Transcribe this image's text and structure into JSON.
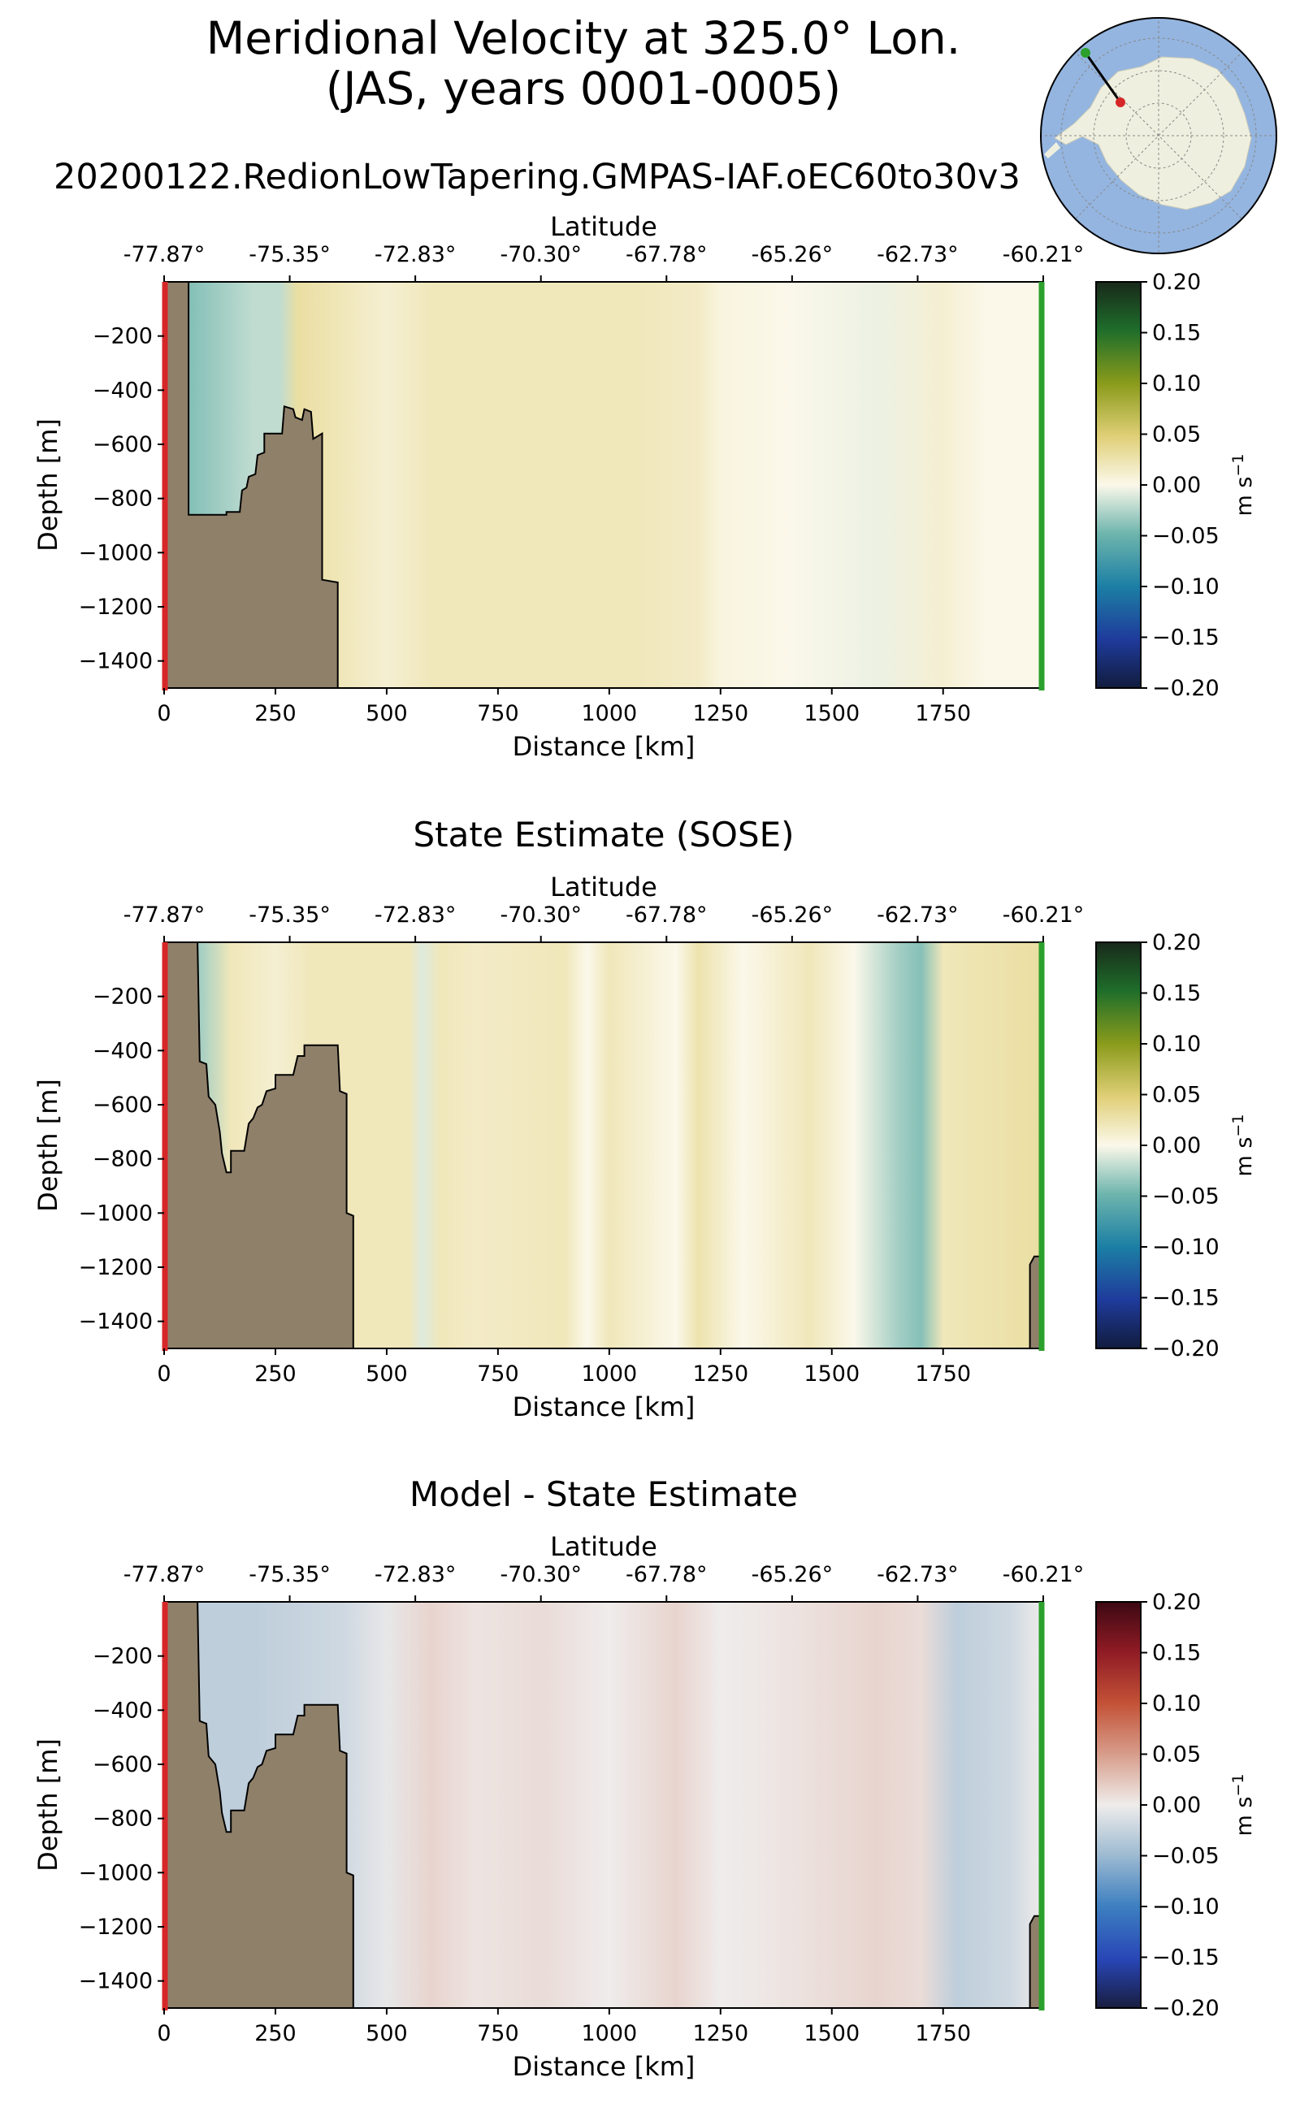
{
  "header": {
    "title_line1": "Meridional Velocity at 325.0° Lon.",
    "title_line2": "(JAS, years 0001-0005)",
    "run_name": "20200122.RedionLowTapering.GMPAS-IAF.oEC60to30v3"
  },
  "inset_map": {
    "description_icon": "antarctica-polar-map-icon",
    "start_color": "#2ca02c",
    "end_color": "#d62728"
  },
  "colors": {
    "land": "#8f806a",
    "left_boundary": "#d62728",
    "right_boundary": "#2ca02c"
  },
  "chart_data": [
    {
      "type": "heatmap",
      "title": "",
      "xlabel": "Distance [km]",
      "ylabel": "Depth [m]",
      "top_axis_label": "Latitude",
      "xlim": [
        0,
        1975
      ],
      "ylim": [
        -1500,
        0
      ],
      "xticks": [
        0,
        250,
        500,
        750,
        1000,
        1250,
        1500,
        1750
      ],
      "yticks": [
        -200,
        -400,
        -600,
        -800,
        -1000,
        -1200,
        -1400
      ],
      "top_ticks": [
        "-77.87°",
        "-75.35°",
        "-72.83°",
        "-70.30°",
        "-67.78°",
        "-65.26°",
        "-62.73°",
        "-60.21°"
      ],
      "colorbar": {
        "label": "m s",
        "label_exp": "−1",
        "ticks": [
          0.2,
          0.15,
          0.1,
          0.05,
          0.0,
          -0.05,
          -0.1,
          -0.15,
          -0.2
        ],
        "colormap": "delta"
      },
      "bathymetry": [
        [
          0,
          0
        ],
        [
          0,
          -1500
        ],
        [
          390,
          -1500
        ],
        [
          390,
          -1110
        ],
        [
          355,
          -1100
        ],
        [
          355,
          -560
        ],
        [
          335,
          -580
        ],
        [
          330,
          -480
        ],
        [
          315,
          -470
        ],
        [
          310,
          -510
        ],
        [
          295,
          -500
        ],
        [
          290,
          -470
        ],
        [
          270,
          -460
        ],
        [
          265,
          -560
        ],
        [
          225,
          -560
        ],
        [
          225,
          -630
        ],
        [
          210,
          -640
        ],
        [
          205,
          -710
        ],
        [
          190,
          -720
        ],
        [
          185,
          -760
        ],
        [
          175,
          -770
        ],
        [
          170,
          -850
        ],
        [
          140,
          -850
        ],
        [
          140,
          -860
        ],
        [
          55,
          -860
        ],
        [
          55,
          0
        ]
      ],
      "right_bathymetry": [],
      "field_note": "Model velocity: weak positive (pale yellow) over most of section, negative (teal) near surface on shelf",
      "field_bands": [
        [
          0,
          0.0
        ],
        [
          60,
          -0.04
        ],
        [
          130,
          -0.03
        ],
        [
          200,
          -0.02
        ],
        [
          260,
          -0.02
        ],
        [
          300,
          0.03
        ],
        [
          400,
          0.02
        ],
        [
          500,
          0.01
        ],
        [
          600,
          0.02
        ],
        [
          750,
          0.02
        ],
        [
          900,
          0.02
        ],
        [
          1050,
          0.02
        ],
        [
          1200,
          0.015
        ],
        [
          1250,
          0.005
        ],
        [
          1400,
          0.0
        ],
        [
          1600,
          -0.005
        ],
        [
          1750,
          0.01
        ],
        [
          1850,
          0.0
        ],
        [
          1975,
          0.0
        ]
      ]
    },
    {
      "type": "heatmap",
      "title": "State Estimate (SOSE)",
      "xlabel": "Distance [km]",
      "ylabel": "Depth [m]",
      "top_axis_label": "Latitude",
      "xlim": [
        0,
        1975
      ],
      "ylim": [
        -1500,
        0
      ],
      "xticks": [
        0,
        250,
        500,
        750,
        1000,
        1250,
        1500,
        1750
      ],
      "yticks": [
        -200,
        -400,
        -600,
        -800,
        -1000,
        -1200,
        -1400
      ],
      "top_ticks": [
        "-77.87°",
        "-75.35°",
        "-72.83°",
        "-70.30°",
        "-67.78°",
        "-65.26°",
        "-62.73°",
        "-60.21°"
      ],
      "colorbar": {
        "label": "m s",
        "label_exp": "−1",
        "ticks": [
          0.2,
          0.15,
          0.1,
          0.05,
          0.0,
          -0.05,
          -0.1,
          -0.15,
          -0.2
        ],
        "colormap": "delta"
      },
      "bathymetry": [
        [
          0,
          0
        ],
        [
          0,
          -1500
        ],
        [
          425,
          -1500
        ],
        [
          425,
          -1010
        ],
        [
          410,
          -1000
        ],
        [
          410,
          -560
        ],
        [
          395,
          -550
        ],
        [
          390,
          -380
        ],
        [
          315,
          -380
        ],
        [
          315,
          -420
        ],
        [
          300,
          -420
        ],
        [
          290,
          -490
        ],
        [
          250,
          -490
        ],
        [
          250,
          -540
        ],
        [
          230,
          -550
        ],
        [
          220,
          -600
        ],
        [
          210,
          -610
        ],
        [
          200,
          -650
        ],
        [
          190,
          -670
        ],
        [
          180,
          -770
        ],
        [
          150,
          -770
        ],
        [
          150,
          -850
        ],
        [
          140,
          -850
        ],
        [
          130,
          -780
        ],
        [
          125,
          -700
        ],
        [
          115,
          -600
        ],
        [
          100,
          -570
        ],
        [
          95,
          -450
        ],
        [
          80,
          -440
        ],
        [
          75,
          0
        ]
      ],
      "right_bathymetry": [
        [
          1975,
          -1500
        ],
        [
          1945,
          -1500
        ],
        [
          1945,
          -1190
        ],
        [
          1955,
          -1160
        ],
        [
          1975,
          -1160
        ]
      ],
      "field_note": "SOSE velocity: pale positive bands with teal negative near the 1700 km band",
      "field_bands": [
        [
          0,
          0.0
        ],
        [
          80,
          -0.03
        ],
        [
          150,
          0.02
        ],
        [
          250,
          0.01
        ],
        [
          330,
          0.02
        ],
        [
          450,
          0.02
        ],
        [
          550,
          0.02
        ],
        [
          580,
          -0.01
        ],
        [
          620,
          0.02
        ],
        [
          700,
          0.015
        ],
        [
          900,
          0.02
        ],
        [
          950,
          0.0
        ],
        [
          1000,
          0.02
        ],
        [
          1150,
          0.0
        ],
        [
          1200,
          0.025
        ],
        [
          1300,
          0.0
        ],
        [
          1450,
          0.02
        ],
        [
          1550,
          0.0
        ],
        [
          1650,
          -0.03
        ],
        [
          1700,
          -0.04
        ],
        [
          1750,
          0.02
        ],
        [
          1850,
          0.025
        ],
        [
          1975,
          0.03
        ]
      ]
    },
    {
      "type": "heatmap",
      "title": "Model - State Estimate",
      "xlabel": "Distance [km]",
      "ylabel": "Depth [m]",
      "top_axis_label": "Latitude",
      "xlim": [
        0,
        1975
      ],
      "ylim": [
        -1500,
        0
      ],
      "xticks": [
        0,
        250,
        500,
        750,
        1000,
        1250,
        1500,
        1750
      ],
      "yticks": [
        -200,
        -400,
        -600,
        -800,
        -1000,
        -1200,
        -1400
      ],
      "top_ticks": [
        "-77.87°",
        "-75.35°",
        "-72.83°",
        "-70.30°",
        "-67.78°",
        "-65.26°",
        "-62.73°",
        "-60.21°"
      ],
      "colorbar": {
        "label": "m s",
        "label_exp": "−1",
        "ticks": [
          0.2,
          0.15,
          0.1,
          0.05,
          0.0,
          -0.05,
          -0.1,
          -0.15,
          -0.2
        ],
        "colormap": "balance"
      },
      "bathymetry": [
        [
          0,
          0
        ],
        [
          0,
          -1500
        ],
        [
          425,
          -1500
        ],
        [
          425,
          -1010
        ],
        [
          410,
          -1000
        ],
        [
          410,
          -560
        ],
        [
          395,
          -550
        ],
        [
          390,
          -380
        ],
        [
          315,
          -380
        ],
        [
          315,
          -420
        ],
        [
          300,
          -420
        ],
        [
          290,
          -490
        ],
        [
          250,
          -490
        ],
        [
          250,
          -540
        ],
        [
          230,
          -550
        ],
        [
          220,
          -600
        ],
        [
          210,
          -610
        ],
        [
          200,
          -650
        ],
        [
          190,
          -670
        ],
        [
          180,
          -770
        ],
        [
          150,
          -770
        ],
        [
          150,
          -850
        ],
        [
          140,
          -850
        ],
        [
          130,
          -780
        ],
        [
          125,
          -700
        ],
        [
          115,
          -600
        ],
        [
          100,
          -570
        ],
        [
          95,
          -450
        ],
        [
          80,
          -440
        ],
        [
          75,
          0
        ]
      ],
      "right_bathymetry": [
        [
          1975,
          -1500
        ],
        [
          1945,
          -1500
        ],
        [
          1945,
          -1190
        ],
        [
          1955,
          -1160
        ],
        [
          1975,
          -1160
        ]
      ],
      "field_note": "Difference: mostly near zero with faint red and blue bands",
      "field_bands": [
        [
          0,
          0.0
        ],
        [
          80,
          -0.03
        ],
        [
          200,
          -0.03
        ],
        [
          400,
          -0.02
        ],
        [
          500,
          -0.005
        ],
        [
          600,
          0.015
        ],
        [
          700,
          0.005
        ],
        [
          850,
          0.01
        ],
        [
          1000,
          0.0
        ],
        [
          1150,
          0.015
        ],
        [
          1250,
          0.0
        ],
        [
          1400,
          0.005
        ],
        [
          1600,
          0.015
        ],
        [
          1700,
          0.01
        ],
        [
          1780,
          -0.03
        ],
        [
          1900,
          -0.02
        ],
        [
          1975,
          0.0
        ]
      ]
    }
  ]
}
